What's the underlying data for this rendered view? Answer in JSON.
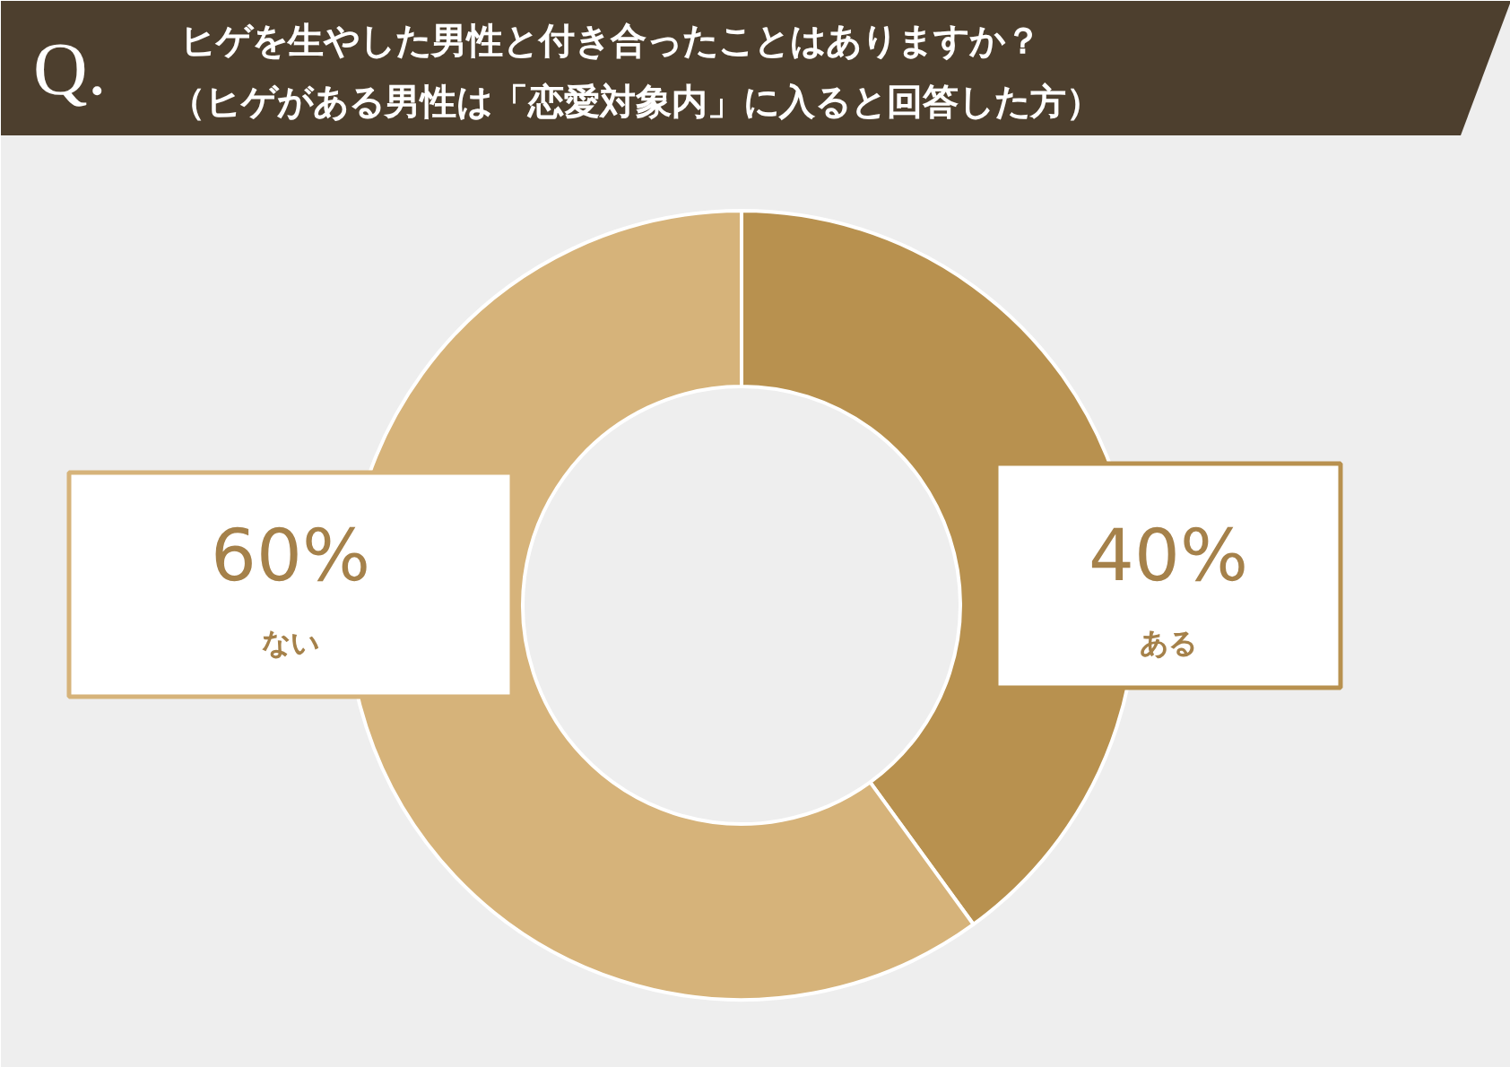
{
  "chart_data": {
    "type": "donut",
    "title": "ヒゲを生やした男性と付き合ったことはありますか？",
    "subtitle": "（ヒゲがある男性は「恋愛対象内」に入ると回答した方）",
    "annotations": [
      "Q."
    ],
    "categories": [
      "ある",
      "ない"
    ],
    "values": [
      40,
      60
    ],
    "colors": [
      "#b8914f",
      "#d6b37a"
    ],
    "value_labels": [
      "40%",
      "60%"
    ]
  }
}
